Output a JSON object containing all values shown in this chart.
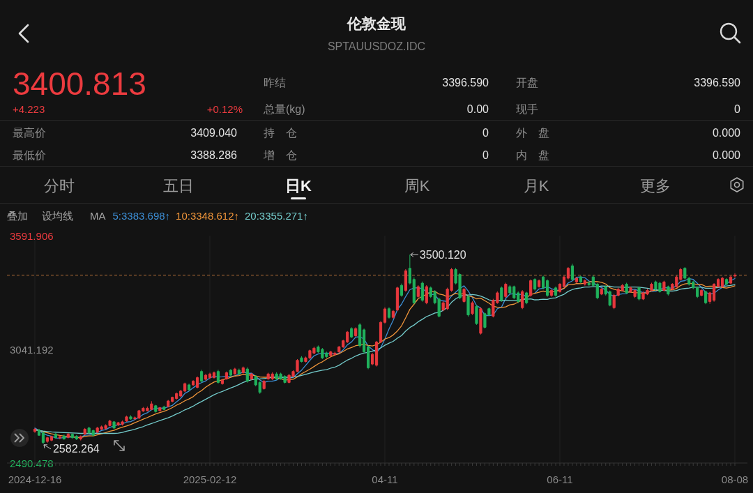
{
  "chart_data": {
    "type": "candlestick",
    "title": "伦敦金现",
    "subtitle": "SPTAUUSDOZ.IDC",
    "legend_title": "MA",
    "legend": "top left",
    "grid": "x",
    "annotations": [
      "3400.813",
      "+4.223",
      "+0.12%",
      "昨结",
      "3396.590",
      "开盘",
      "3396.590",
      "总量(kg)",
      "0.00",
      "现手",
      "0",
      "最高价",
      "3409.040",
      "持　仓",
      "0",
      "外　盘",
      "0.000",
      "最低价",
      "3388.286",
      "增　仓",
      "0",
      "内　盘",
      "0.000",
      "分时",
      "五日",
      "日K",
      "周K",
      "月K",
      "更多",
      "叠加",
      "设均线",
      "3500.120",
      "2582.264"
    ],
    "ylim": [
      2490.478,
      3591.906
    ],
    "yticks": [
      3591.906,
      3041.192,
      2490.478
    ],
    "ref_lines": [
      {
        "axis": "y",
        "value": 3400.813,
        "color": "#b8733a",
        "line_style": "dashed"
      }
    ],
    "categories": [
      "2024-12-16",
      null,
      null,
      null,
      null,
      null,
      null,
      null,
      null,
      null,
      null,
      null,
      null,
      null,
      null,
      null,
      null,
      null,
      null,
      null,
      null,
      null,
      null,
      null,
      null,
      null,
      null,
      null,
      null,
      null,
      null,
      null,
      null,
      null,
      null,
      null,
      null,
      null,
      null,
      null,
      null,
      null,
      "2025-02-12",
      null,
      null,
      null,
      null,
      null,
      null,
      null,
      null,
      null,
      null,
      null,
      null,
      null,
      null,
      null,
      null,
      null,
      null,
      null,
      null,
      null,
      null,
      null,
      null,
      null,
      null,
      null,
      null,
      null,
      null,
      null,
      null,
      null,
      null,
      null,
      null,
      null,
      null,
      null,
      null,
      null,
      "04-11",
      null,
      null,
      null,
      null,
      null,
      null,
      null,
      null,
      null,
      null,
      null,
      null,
      null,
      null,
      null,
      null,
      null,
      null,
      null,
      null,
      null,
      null,
      null,
      null,
      null,
      null,
      null,
      null,
      null,
      null,
      null,
      null,
      null,
      null,
      null,
      null,
      null,
      null,
      null,
      null,
      null,
      "06-11",
      null,
      null,
      null,
      null,
      null,
      null,
      null,
      null,
      null,
      null,
      null,
      null,
      null,
      null,
      null,
      null,
      null,
      null,
      null,
      null,
      null,
      null,
      null,
      null,
      null,
      null,
      null,
      null,
      null,
      null,
      null,
      null,
      null,
      null,
      null,
      null,
      null,
      null,
      null,
      null,
      null,
      "08-08"
    ],
    "ohlc": [
      [
        2643,
        2660,
        2637,
        2654
      ],
      [
        2650,
        2656,
        2622,
        2625
      ],
      [
        2637,
        2642,
        2582.264,
        2590
      ],
      [
        2595,
        2618,
        2588,
        2613
      ],
      [
        2601,
        2622,
        2596,
        2619
      ],
      [
        2631,
        2636,
        2610,
        2613
      ],
      [
        2612,
        2624,
        2605,
        2618
      ],
      [
        2622,
        2628,
        2603,
        2607
      ],
      [
        2615,
        2636,
        2610,
        2630
      ],
      [
        2630,
        2635,
        2609,
        2613
      ],
      [
        2620,
        2626,
        2602,
        2607
      ],
      [
        2607,
        2624,
        2600,
        2619
      ],
      [
        2631,
        2660,
        2626,
        2654
      ],
      [
        2660,
        2666,
        2632,
        2637
      ],
      [
        2648,
        2652,
        2620,
        2625
      ],
      [
        2640,
        2666,
        2635,
        2660
      ],
      [
        2654,
        2672,
        2650,
        2666
      ],
      [
        2658,
        2678,
        2652,
        2672
      ],
      [
        2672,
        2700,
        2668,
        2694
      ],
      [
        2690,
        2694,
        2655,
        2660
      ],
      [
        2675,
        2690,
        2670,
        2686
      ],
      [
        2678,
        2696,
        2672,
        2690
      ],
      [
        2694,
        2720,
        2690,
        2714
      ],
      [
        2714,
        2722,
        2700,
        2704
      ],
      [
        2705,
        2716,
        2698,
        2710
      ],
      [
        2708,
        2748,
        2704,
        2744
      ],
      [
        2742,
        2762,
        2738,
        2756
      ],
      [
        2744,
        2764,
        2740,
        2756
      ],
      [
        2750,
        2790,
        2746,
        2777
      ],
      [
        2768,
        2772,
        2735,
        2740
      ],
      [
        2744,
        2762,
        2740,
        2758
      ],
      [
        2762,
        2768,
        2746,
        2750
      ],
      [
        2765,
        2796,
        2760,
        2791
      ],
      [
        2789,
        2812,
        2784,
        2809
      ],
      [
        2803,
        2832,
        2798,
        2827
      ],
      [
        2815,
        2845,
        2810,
        2839
      ],
      [
        2839,
        2880,
        2834,
        2875
      ],
      [
        2869,
        2875,
        2840,
        2845
      ],
      [
        2869,
        2892,
        2864,
        2887
      ],
      [
        2857,
        2910,
        2852,
        2904
      ],
      [
        2934,
        2942,
        2880,
        2887
      ],
      [
        2896,
        2922,
        2890,
        2916
      ],
      [
        2904,
        2928,
        2898,
        2922
      ],
      [
        2904,
        2934,
        2900,
        2928
      ],
      [
        2934,
        2942,
        2875,
        2881
      ],
      [
        2875,
        2898,
        2870,
        2892
      ],
      [
        2898,
        2934,
        2894,
        2928
      ],
      [
        2940,
        2946,
        2910,
        2916
      ],
      [
        2922,
        2952,
        2918,
        2946
      ],
      [
        2940,
        2948,
        2916,
        2922
      ],
      [
        2928,
        2958,
        2924,
        2952
      ],
      [
        2946,
        2954,
        2880,
        2887
      ],
      [
        2898,
        2926,
        2892,
        2922
      ],
      [
        2910,
        2916,
        2862,
        2869
      ],
      [
        2881,
        2886,
        2826,
        2833
      ],
      [
        2851,
        2892,
        2846,
        2887
      ],
      [
        2898,
        2928,
        2894,
        2922
      ],
      [
        2898,
        2930,
        2892,
        2922
      ],
      [
        2922,
        2930,
        2892,
        2898
      ],
      [
        2922,
        2928,
        2894,
        2898
      ],
      [
        2910,
        2916,
        2876,
        2881
      ],
      [
        2881,
        2922,
        2876,
        2916
      ],
      [
        2910,
        2940,
        2906,
        2934
      ],
      [
        2934,
        2994,
        2930,
        2988
      ],
      [
        3000,
        3008,
        2978,
        2982
      ],
      [
        2982,
        3006,
        2978,
        3000
      ],
      [
        3000,
        3040,
        2994,
        3035
      ],
      [
        3023,
        3054,
        3018,
        3047
      ],
      [
        3053,
        3060,
        3024,
        3029
      ],
      [
        3041,
        3048,
        2994,
        3000
      ],
      [
        3023,
        3030,
        3000,
        3006
      ],
      [
        3011,
        3034,
        3006,
        3029
      ],
      [
        3017,
        3030,
        3010,
        3023
      ],
      [
        3029,
        3058,
        3024,
        3053
      ],
      [
        3053,
        3088,
        3048,
        3083
      ],
      [
        3077,
        3130,
        3072,
        3125
      ],
      [
        3142,
        3148,
        3096,
        3101
      ],
      [
        3107,
        3148,
        3100,
        3142
      ],
      [
        3160,
        3168,
        3050,
        3059
      ],
      [
        3136,
        3142,
        3020,
        3029
      ],
      [
        3053,
        3060,
        2945,
        2952
      ],
      [
        2970,
        3024,
        2964,
        3017
      ],
      [
        2964,
        3082,
        2958,
        3077
      ],
      [
        3077,
        3178,
        3072,
        3172
      ],
      [
        3172,
        3245,
        3166,
        3237
      ],
      [
        3238,
        3245,
        3190,
        3196
      ],
      [
        3196,
        3232,
        3190,
        3226
      ],
      [
        3232,
        3345,
        3226,
        3339
      ],
      [
        3351,
        3360,
        3296,
        3303
      ],
      [
        3327,
        3430,
        3320,
        3422
      ],
      [
        3434,
        3500.12,
        3355,
        3362
      ],
      [
        3380,
        3390,
        3260,
        3267
      ],
      [
        3297,
        3352,
        3290,
        3345
      ],
      [
        3362,
        3370,
        3272,
        3279
      ],
      [
        3267,
        3352,
        3260,
        3345
      ],
      [
        3339,
        3346,
        3290,
        3297
      ],
      [
        3321,
        3328,
        3260,
        3267
      ],
      [
        3285,
        3292,
        3196,
        3202
      ],
      [
        3232,
        3274,
        3226,
        3267
      ],
      [
        3238,
        3340,
        3232,
        3333
      ],
      [
        3327,
        3436,
        3320,
        3428
      ],
      [
        3428,
        3436,
        3356,
        3362
      ],
      [
        3404,
        3410,
        3284,
        3291
      ],
      [
        3273,
        3340,
        3266,
        3333
      ],
      [
        3297,
        3304,
        3200,
        3208
      ],
      [
        3214,
        3274,
        3208,
        3267
      ],
      [
        3249,
        3256,
        3160,
        3166
      ],
      [
        3119,
        3245,
        3113,
        3238
      ],
      [
        3214,
        3220,
        3142,
        3148
      ],
      [
        3238,
        3244,
        3202,
        3208
      ],
      [
        3202,
        3286,
        3196,
        3279
      ],
      [
        3267,
        3322,
        3262,
        3315
      ],
      [
        3339,
        3346,
        3272,
        3279
      ],
      [
        3297,
        3364,
        3290,
        3357
      ],
      [
        3345,
        3352,
        3308,
        3315
      ],
      [
        3345,
        3350,
        3284,
        3291
      ],
      [
        3315,
        3322,
        3266,
        3273
      ],
      [
        3243,
        3328,
        3236,
        3321
      ],
      [
        3315,
        3320,
        3260,
        3267
      ],
      [
        3303,
        3380,
        3296,
        3374
      ],
      [
        3380,
        3386,
        3326,
        3333
      ],
      [
        3345,
        3380,
        3340,
        3374
      ],
      [
        3392,
        3398,
        3332,
        3339
      ],
      [
        3374,
        3380,
        3296,
        3303
      ],
      [
        3303,
        3332,
        3296,
        3327
      ],
      [
        3339,
        3346,
        3296,
        3303
      ],
      [
        3321,
        3362,
        3316,
        3357
      ],
      [
        3345,
        3398,
        3340,
        3392
      ],
      [
        3386,
        3440,
        3380,
        3434
      ],
      [
        3446,
        3456,
        3374,
        3380
      ],
      [
        3368,
        3392,
        3362,
        3386
      ],
      [
        3392,
        3398,
        3362,
        3368
      ],
      [
        3357,
        3380,
        3350,
        3374
      ],
      [
        3362,
        3372,
        3348,
        3354
      ],
      [
        3392,
        3400,
        3345,
        3351
      ],
      [
        3357,
        3362,
        3284,
        3291
      ],
      [
        3309,
        3338,
        3304,
        3333
      ],
      [
        3345,
        3350,
        3302,
        3309
      ],
      [
        3321,
        3326,
        3250,
        3255
      ],
      [
        3243,
        3310,
        3236,
        3303
      ],
      [
        3303,
        3340,
        3298,
        3333
      ],
      [
        3327,
        3358,
        3322,
        3351
      ],
      [
        3357,
        3364,
        3310,
        3315
      ],
      [
        3321,
        3346,
        3316,
        3339
      ],
      [
        3297,
        3332,
        3290,
        3327
      ],
      [
        3339,
        3346,
        3278,
        3285
      ],
      [
        3285,
        3322,
        3280,
        3315
      ],
      [
        3309,
        3334,
        3304,
        3327
      ],
      [
        3327,
        3364,
        3322,
        3357
      ],
      [
        3368,
        3374,
        3326,
        3333
      ],
      [
        3362,
        3368,
        3316,
        3321
      ],
      [
        3327,
        3374,
        3322,
        3368
      ],
      [
        3345,
        3350,
        3302,
        3309
      ],
      [
        3333,
        3362,
        3328,
        3357
      ],
      [
        3345,
        3398,
        3340,
        3392
      ],
      [
        3380,
        3436,
        3374,
        3428
      ],
      [
        3434,
        3440,
        3380,
        3386
      ],
      [
        3386,
        3392,
        3350,
        3357
      ],
      [
        3368,
        3374,
        3333,
        3339
      ],
      [
        3339,
        3346,
        3290,
        3297
      ],
      [
        3303,
        3332,
        3298,
        3327
      ],
      [
        3321,
        3326,
        3260,
        3267
      ],
      [
        3273,
        3320,
        3262,
        3315
      ],
      [
        3279,
        3362,
        3272,
        3357
      ],
      [
        3345,
        3386,
        3340,
        3380
      ],
      [
        3345,
        3392,
        3340,
        3386
      ],
      [
        3380,
        3386,
        3350,
        3357
      ],
      [
        3362,
        3398,
        3356,
        3392
      ],
      [
        3396.59,
        3409.04,
        3388.286,
        3400.813
      ]
    ],
    "colors": [
      "#e8383d",
      "#20b25c",
      "#20b25c",
      "#e8383d",
      "#e8383d",
      "#20b25c",
      "#e8383d",
      "#20b25c",
      "#e8383d",
      "#20b25c",
      "#20b25c",
      "#e8383d",
      "#e8383d",
      "#20b25c",
      "#20b25c",
      "#e8383d",
      "#e8383d",
      "#e8383d",
      "#e8383d",
      "#20b25c",
      "#e8383d",
      "#e8383d",
      "#e8383d",
      "#20b25c",
      "#e8383d",
      "#e8383d",
      "#e8383d",
      "#e8383d",
      "#e8383d",
      "#20b25c",
      "#e8383d",
      "#20b25c",
      "#e8383d",
      "#e8383d",
      "#e8383d",
      "#e8383d",
      "#e8383d",
      "#20b25c",
      "#e8383d",
      "#e8383d",
      "#20b25c",
      "#e8383d",
      "#e8383d",
      "#e8383d",
      "#20b25c",
      "#e8383d",
      "#e8383d",
      "#20b25c",
      "#e8383d",
      "#20b25c",
      "#e8383d",
      "#20b25c",
      "#e8383d",
      "#20b25c",
      "#20b25c",
      "#e8383d",
      "#e8383d",
      "#e8383d",
      "#20b25c",
      "#20b25c",
      "#20b25c",
      "#e8383d",
      "#e8383d",
      "#e8383d",
      "#20b25c",
      "#e8383d",
      "#e8383d",
      "#e8383d",
      "#20b25c",
      "#20b25c",
      "#20b25c",
      "#e8383d",
      "#e8383d",
      "#e8383d",
      "#e8383d",
      "#e8383d",
      "#20b25c",
      "#e8383d",
      "#20b25c",
      "#20b25c",
      "#20b25c",
      "#e8383d",
      "#e8383d",
      "#e8383d",
      "#e8383d",
      "#20b25c",
      "#e8383d",
      "#e8383d",
      "#20b25c",
      "#e8383d",
      "#20b25c",
      "#20b25c",
      "#e8383d",
      "#20b25c",
      "#e8383d",
      "#20b25c",
      "#20b25c",
      "#20b25c",
      "#e8383d",
      "#e8383d",
      "#e8383d",
      "#20b25c",
      "#20b25c",
      "#e8383d",
      "#20b25c",
      "#e8383d",
      "#20b25c",
      "#e8383d",
      "#20b25c",
      "#20b25c",
      "#e8383d",
      "#e8383d",
      "#20b25c",
      "#e8383d",
      "#20b25c",
      "#20b25c",
      "#20b25c",
      "#e8383d",
      "#20b25c",
      "#e8383d",
      "#20b25c",
      "#e8383d",
      "#20b25c",
      "#20b25c",
      "#e8383d",
      "#20b25c",
      "#e8383d",
      "#e8383d",
      "#e8383d",
      "#20b25c",
      "#e8383d",
      "#20b25c",
      "#e8383d",
      "#20b25c",
      "#20b25c",
      "#20b25c",
      "#e8383d",
      "#20b25c",
      "#20b25c",
      "#e8383d",
      "#e8383d",
      "#e8383d",
      "#20b25c",
      "#e8383d",
      "#e8383d",
      "#20b25c",
      "#e8383d",
      "#e8383d",
      "#e8383d",
      "#20b25c",
      "#20b25c",
      "#e8383d",
      "#20b25c",
      "#e8383d",
      "#e8383d",
      "#e8383d",
      "#20b25c",
      "#20b25c",
      "#20b25c",
      "#20b25c",
      "#e8383d",
      "#20b25c",
      "#e8383d",
      "#e8383d",
      "#e8383d",
      "#e8383d",
      "#20b25c",
      "#e8383d",
      "#e8383d"
    ],
    "series": [
      {
        "name": "5:3383.698↑",
        "type": "line",
        "color": "#3d8fd6",
        "values": [
          2660,
          2648,
          2633,
          2625,
          2620,
          2612,
          2611,
          2614,
          2617,
          2616,
          2615,
          2615,
          2625,
          2626,
          2628,
          2639,
          2648,
          2652,
          2663,
          2670,
          2676,
          2680,
          2689,
          2691,
          2701,
          2712,
          2726,
          2734,
          2749,
          2755,
          2757,
          2756,
          2763,
          2770,
          2787,
          2803,
          2828,
          2839,
          2855,
          2870,
          2880,
          2888,
          2903,
          2911,
          2907,
          2908,
          2910,
          2909,
          2913,
          2921,
          2933,
          2925,
          2926,
          2910,
          2893,
          2880,
          2887,
          2887,
          2892,
          2905,
          2904,
          2903,
          2905,
          2923,
          2940,
          2964,
          2988,
          3010,
          3019,
          3022,
          3023,
          3022,
          3017,
          3022,
          3039,
          3063,
          3077,
          3101,
          3102,
          3091,
          3057,
          3040,
          3027,
          3049,
          3091,
          3140,
          3182,
          3234,
          3260,
          3297,
          3330,
          3339,
          3340,
          3335,
          3320,
          3307,
          3307,
          3278,
          3276,
          3273,
          3299,
          3318,
          3336,
          3349,
          3324,
          3292,
          3253,
          3242,
          3205,
          3205,
          3208,
          3238,
          3246,
          3288,
          3309,
          3311,
          3303,
          3311,
          3293,
          null,
          3314,
          3334,
          3337,
          3345,
          3335,
          3329,
          3326,
          3336,
          3363,
          3373,
          3390,
          3392,
          3388,
          3372,
          3367,
          3348,
          3341,
          3328,
          3308,
          3298,
          3307,
          3310,
          3311,
          3328,
          3333,
          3323,
          3316,
          3319,
          3322,
          3323,
          3331,
          3341,
          3338,
          3338,
          3349,
          3371,
          3374,
          3384,
          3380,
          3361,
          3341,
          3317,
          3309,
          3313,
          3329,
          3341,
          3359,
          3374,
          3384
        ]
      },
      {
        "name": "10:3348.612↑",
        "type": "line",
        "color": "#f0953a",
        "values": [
          2652,
          2648,
          2642,
          2637,
          2632,
          2628,
          2624,
          2621,
          2619,
          2618,
          2614,
          2613,
          2619,
          2622,
          2622,
          2627,
          2632,
          2638,
          2645,
          2649,
          2657,
          2664,
          2670,
          2677,
          2686,
          2694,
          2703,
          2711,
          2720,
          2728,
          2735,
          2741,
          2749,
          2759,
          2771,
          2780,
          2792,
          2801,
          2812,
          2829,
          2841,
          2858,
          2871,
          2883,
          2888,
          2894,
          2899,
          2906,
          2912,
          2914,
          2920,
          2917,
          2917,
          2912,
          2907,
          2906,
          2906,
          2906,
          2901,
          2899,
          2892,
          2895,
          2896,
          2908,
          2923,
          2934,
          2945,
          2958,
          2971,
          2981,
          2994,
          3005,
          3014,
          3020,
          3031,
          3043,
          3050,
          3059,
          3062,
          3065,
          3060,
          3058,
          3064,
          3076,
          3091,
          3098,
          3111,
          3130,
          3155,
          3194,
          3235,
          3260,
          3287,
          3298,
          3308,
          3319,
          3323,
          3309,
          3305,
          3296,
          3303,
          3313,
          3307,
          3313,
          3299,
          3296,
          3286,
          3289,
          3277,
          3265,
          3250,
          3245,
          3244,
          3247,
          3257,
          3260,
          3270,
          3279,
          3291,
          3307,
          3313,
          3318,
          3324,
          3319,
          3320,
          3321,
          3330,
          3337,
          3354,
          3354,
          3360,
          3359,
          3362,
          3368,
          3370,
          3369,
          3366,
          3358,
          3340,
          3332,
          3327,
          3325,
          3320,
          3318,
          3316,
          3315,
          3313,
          3315,
          3325,
          3328,
          3327,
          3329,
          3328,
          3330,
          3336,
          3351,
          3358,
          3361,
          3359,
          3355,
          3356,
          3346,
          3347,
          3347,
          3345,
          3341,
          3338,
          3342,
          3349
        ]
      },
      {
        "name": "20:3355.271↑",
        "type": "line",
        "color": "#74cccc",
        "values": [
          2650,
          2648,
          2645,
          2643,
          2641,
          2640,
          2639,
          2638,
          2637,
          2636,
          2635,
          2634,
          2634,
          2634,
          2634,
          2634,
          2634,
          2634,
          2634,
          2634,
          2635,
          2639,
          2645,
          2649,
          2654,
          2661,
          2667,
          2675,
          2682,
          2689,
          2696,
          2703,
          2710,
          2718,
          2728,
          2737,
          2748,
          2756,
          2766,
          2778,
          2788,
          2799,
          2810,
          2821,
          2830,
          2837,
          2846,
          2854,
          2862,
          2871,
          2881,
          2888,
          2894,
          2897,
          2898,
          2900,
          2902,
          2906,
          2907,
          2906,
          2906,
          2906,
          2907,
          2910,
          2915,
          2920,
          2926,
          2932,
          2936,
          2940,
          2943,
          2950,
          2955,
          2964,
          2977,
          2989,
          2998,
          3009,
          3017,
          3023,
          3027,
          3032,
          3039,
          3048,
          3061,
          3071,
          3080,
          3095,
          3108,
          3130,
          3147,
          3159,
          3175,
          3187,
          3200,
          3208,
          3217,
          3220,
          3230,
          3245,
          3269,
          3286,
          3297,
          3305,
          3304,
          3307,
          3304,
          3299,
          3291,
          3281,
          3277,
          3279,
          3276,
          3280,
          3278,
          3278,
          3278,
          3284,
          3284,
          3286,
          3281,
          3282,
          3284,
          3283,
          3289,
          3291,
          3300,
          3308,
          3322,
          3331,
          3336,
          3339,
          3343,
          3343,
          3345,
          3345,
          3348,
          3347,
          3347,
          3343,
          3343,
          3342,
          3341,
          3343,
          3343,
          3342,
          3340,
          3337,
          3333,
          3330,
          3327,
          3327,
          3324,
          3324,
          3326,
          3333,
          3336,
          3338,
          3342,
          3342,
          3342,
          3337,
          3337,
          3338,
          3341,
          3346,
          3348,
          3351,
          3355
        ]
      }
    ]
  }
}
